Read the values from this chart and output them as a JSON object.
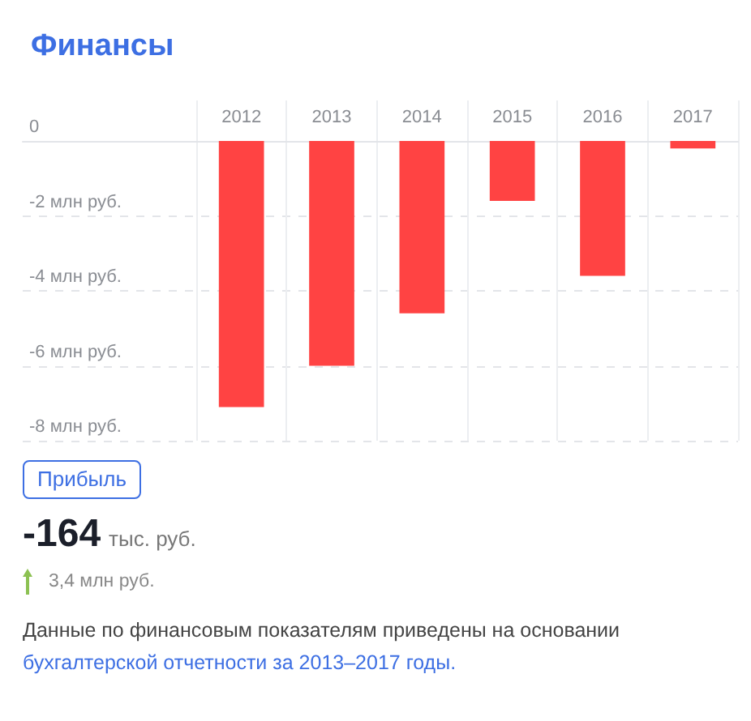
{
  "chart_data": {
    "type": "bar",
    "title": "Финансы",
    "categories": [
      "2012",
      "2013",
      "2014",
      "2015",
      "2016",
      "2017"
    ],
    "values": [
      -7.1,
      -6.0,
      -4.6,
      -1.6,
      -3.6,
      -0.2
    ],
    "color": "#ff4343",
    "ylim": [
      -8,
      0
    ],
    "yticks": [
      {
        "value": 0,
        "label": "0"
      },
      {
        "value": -2,
        "label": "-2 млн руб."
      },
      {
        "value": -4,
        "label": "-4 млн руб."
      },
      {
        "value": -6,
        "label": "-6 млн руб."
      },
      {
        "value": -8,
        "label": "-8 млн руб."
      }
    ],
    "grid": true,
    "annotations": [
      "Прибыль",
      "-164 тыс. руб.",
      "3,4 млн руб.",
      "Данные по финансовым показателям приведены на основании",
      "бухгалтерской отчетности за 2013–2017 годы."
    ]
  }
}
